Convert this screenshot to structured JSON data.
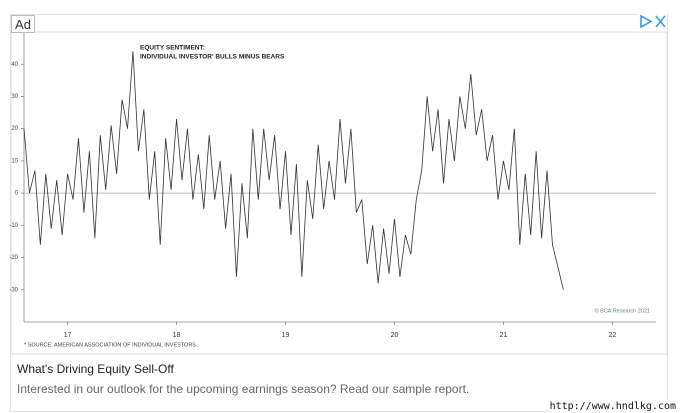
{
  "ad": {
    "label": "Ad",
    "headline": "What's Driving Equity Sell-Off",
    "description": "Interested in our outlook for the upcoming earnings season? Read our sample report.",
    "watermark": "http://www.hndlkg.com"
  },
  "chart_data": {
    "type": "line",
    "title": "EQUITY SENTIMENT:",
    "subtitle": "INDIVIDUAL INVESTOR' BULLS MINUS BEARS",
    "source": "* SOURCE: AMERICAN ASSOCIATION OF INDIVIDUAL INVESTORS.",
    "credit": "© BCA Research 2021",
    "color": "#333333",
    "xlim": [
      16.6,
      22.4
    ],
    "xticks": [
      17,
      18,
      19,
      20,
      21,
      22
    ],
    "ylim": [
      -40,
      50
    ],
    "yticks": [
      -30,
      -20,
      -10,
      0,
      10,
      20,
      30,
      40
    ],
    "x": [
      16.6,
      16.65,
      16.7,
      16.75,
      16.8,
      16.85,
      16.9,
      16.95,
      17,
      17.05,
      17.1,
      17.15,
      17.2,
      17.25,
      17.3,
      17.35,
      17.4,
      17.45,
      17.5,
      17.55,
      17.6,
      17.65,
      17.7,
      17.75,
      17.8,
      17.85,
      17.9,
      17.95,
      18,
      18.05,
      18.1,
      18.15,
      18.2,
      18.25,
      18.3,
      18.35,
      18.4,
      18.45,
      18.5,
      18.55,
      18.6,
      18.65,
      18.7,
      18.75,
      18.8,
      18.85,
      18.9,
      18.95,
      19,
      19.05,
      19.1,
      19.15,
      19.2,
      19.25,
      19.3,
      19.35,
      19.4,
      19.45,
      19.5,
      19.55,
      19.6,
      19.65,
      19.7,
      19.75,
      19.8,
      19.85,
      19.9,
      19.95,
      20,
      20.05,
      20.1,
      20.15,
      20.2,
      20.25,
      20.3,
      20.35,
      20.4,
      20.45,
      20.5,
      20.55,
      20.6,
      20.65,
      20.7,
      20.75,
      20.8,
      20.85,
      20.9,
      20.95,
      21,
      21.05,
      21.1,
      21.15,
      21.2,
      21.25,
      21.3,
      21.35,
      21.4,
      21.45,
      21.5,
      21.55
    ],
    "values": [
      20,
      0,
      7,
      -16,
      6,
      -11,
      4,
      -13,
      6,
      -2,
      17,
      -6,
      13,
      -14,
      18,
      1,
      21,
      6,
      29,
      20,
      44,
      13,
      26,
      -2,
      13,
      -16,
      17,
      1,
      23,
      4,
      20,
      -2,
      12,
      -5,
      18,
      -2,
      10,
      -11,
      6,
      -26,
      3,
      -14,
      20,
      -2,
      20,
      4,
      18,
      -5,
      13,
      -13,
      9,
      -26,
      4,
      -8,
      15,
      -5,
      10,
      -2,
      23,
      3,
      20,
      -6,
      -2,
      -22,
      -10,
      -28,
      -11,
      -25,
      -8,
      -26,
      -13,
      -19,
      -2,
      7,
      30,
      13,
      26,
      3,
      23,
      10,
      30,
      20,
      37,
      18,
      26,
      10,
      18,
      -2,
      10,
      1,
      20,
      -16,
      6,
      -13,
      13,
      -14,
      7,
      -16,
      -23,
      -30
    ]
  }
}
